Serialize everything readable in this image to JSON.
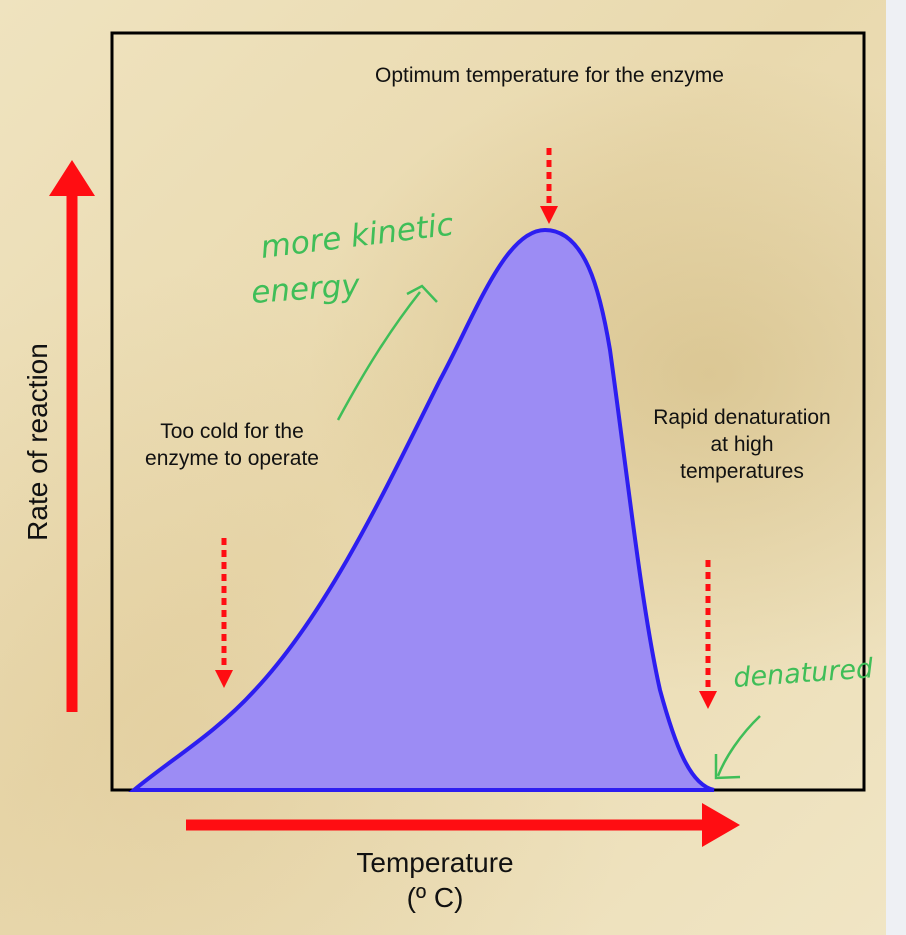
{
  "texts": {
    "optimum": "Optimum temperature for the enzyme",
    "too_cold": "Too cold for the enzyme to operate",
    "rapid": "Rapid denaturation at high temperatures",
    "x_axis_line1": "Temperature",
    "x_axis_line2": "(º C)",
    "y_axis": "Rate of reaction",
    "hand_more_kinetic": "more kinetic",
    "hand_energy": "energy",
    "hand_denatured": "denatured"
  },
  "colors": {
    "curve": "#2d1ef0",
    "fill": "#9c8cf4",
    "axis_arrow": "#ff0d12",
    "hand": "#3fbe58",
    "frame": "#000000"
  }
}
